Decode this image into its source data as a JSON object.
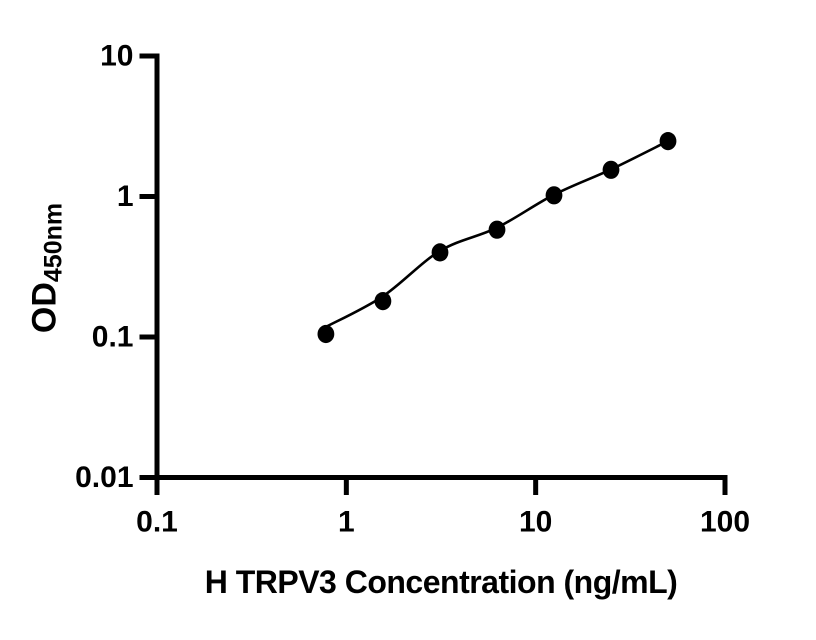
{
  "figure": {
    "background": "#ffffff",
    "foreground": "#000000"
  },
  "chart_data": {
    "type": "scatter",
    "title": "",
    "xlabel": "H TRPV3 Concentration (ng/mL)",
    "ylabel": {
      "text": "OD",
      "subscript": "450nm"
    },
    "x_scale": "log",
    "y_scale": "log",
    "xlim": [
      0.1,
      100
    ],
    "ylim": [
      0.01,
      10
    ],
    "x_ticks": [
      0.1,
      1,
      10,
      100
    ],
    "x_tick_labels": [
      "0.1",
      "1",
      "10",
      "100"
    ],
    "y_ticks": [
      0.01,
      0.1,
      1,
      10
    ],
    "y_tick_labels": [
      "0.01",
      "0.1",
      "1",
      "10"
    ],
    "grid": false,
    "legend_position": "none",
    "marker_color": "#000000",
    "line_color": "#000000",
    "series": [
      {
        "name": "standard-curve-points",
        "marker": "filled-circle",
        "x": [
          0.78,
          1.56,
          3.125,
          6.25,
          12.5,
          25,
          50
        ],
        "y": [
          0.105,
          0.18,
          0.4,
          0.58,
          1.02,
          1.55,
          2.48
        ]
      }
    ],
    "fit_line": {
      "name": "fitted-curve",
      "x": [
        0.78,
        1.56,
        3.125,
        6.25,
        12.5,
        25,
        50
      ],
      "y": [
        0.118,
        0.195,
        0.41,
        0.6,
        1.03,
        1.56,
        2.48
      ]
    }
  }
}
